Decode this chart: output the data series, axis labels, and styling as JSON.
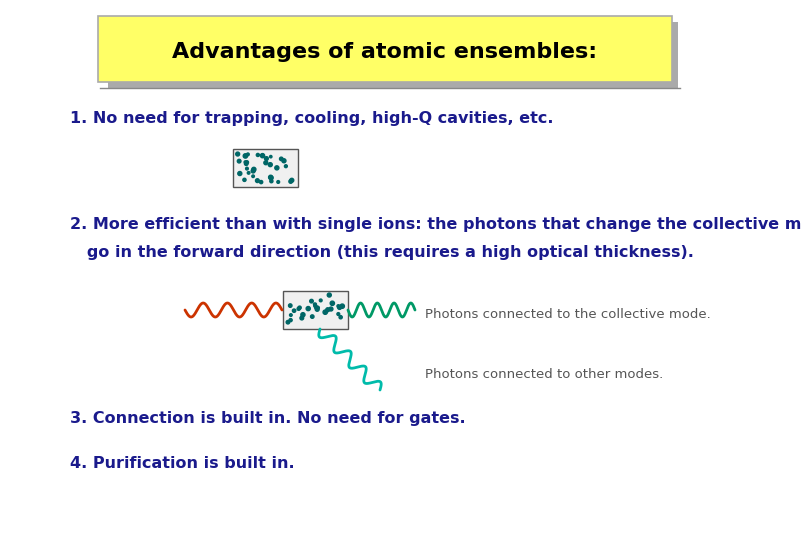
{
  "title": "Advantages of atomic ensembles:",
  "title_bg": "#ffff66",
  "title_fontsize": 16,
  "body_bg": "#ffffff",
  "text_color_dark": "#1a1a8c",
  "text_color_black": "#000000",
  "text_color_gray": "#555555",
  "item1": "1. No need for trapping, cooling, high-Q cavities, etc.",
  "item2a": "2. More efficient than with single ions: the photons that change the collective m",
  "item2b": "   go in the forward direction (this requires a high optical thickness).",
  "item3": "3. Connection is built in. No need for gates.",
  "item4": "4. Purification is built in.",
  "photon_label1": "Photons connected to the collective mode.",
  "photon_label2": "Photons connected to other modes.",
  "wave_color_red": "#cc3300",
  "wave_color_teal_out": "#009966",
  "wave_color_teal_down": "#00bbaa",
  "atom_dot_color": "#006666"
}
